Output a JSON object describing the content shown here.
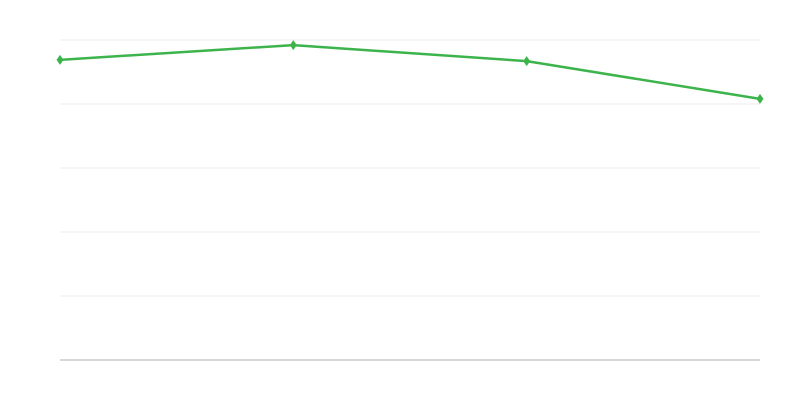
{
  "chart_data": {
    "type": "line",
    "title": "",
    "xlabel": "",
    "ylabel": "",
    "x": [
      1,
      2,
      3,
      4
    ],
    "ylim": [
      0,
      5
    ],
    "yticks": [
      0,
      1,
      2,
      3,
      4,
      5
    ],
    "grid": true,
    "legend": "none",
    "marker": "diamond",
    "series": [
      {
        "values": [
          4.69,
          4.92,
          4.67,
          4.08
        ],
        "color": "#3cb44b"
      }
    ],
    "colors": {
      "grid": "#ebebeb",
      "axis": "#b0b0b0"
    }
  }
}
